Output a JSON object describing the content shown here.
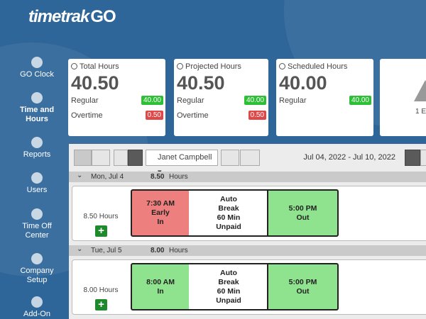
{
  "header": {
    "logo_main": "timetrak",
    "logo_go": "GO"
  },
  "sidebar": {
    "items": [
      {
        "label": "GO Clock"
      },
      {
        "label": "Time and Hours",
        "active": true
      },
      {
        "label": "Reports"
      },
      {
        "label": "Users"
      },
      {
        "label": "Time Off Center"
      },
      {
        "label": "Company Setup"
      },
      {
        "label": "Add-On"
      }
    ]
  },
  "summary_cards": [
    {
      "title": "Total Hours",
      "value": "40.50",
      "rows": [
        {
          "label": "Regular",
          "value": "40.00",
          "color": "green"
        },
        {
          "label": "Overtime",
          "value": "0.50",
          "color": "red"
        }
      ]
    },
    {
      "title": "Projected Hours",
      "value": "40.50",
      "rows": [
        {
          "label": "Regular",
          "value": "40.00",
          "color": "green"
        },
        {
          "label": "Overtime",
          "value": "0.50",
          "color": "red"
        }
      ]
    },
    {
      "title": "Scheduled Hours",
      "value": "40.00",
      "rows": [
        {
          "label": "Regular",
          "value": "40.00",
          "color": "green"
        }
      ]
    }
  ],
  "partial_card": {
    "text": "1 E"
  },
  "toolbar": {
    "employee": "Janet Campbell",
    "date_range": "Jul 04, 2022 - Jul 10, 2022"
  },
  "days": [
    {
      "date": "Mon, Jul 4",
      "total": "8.50",
      "unit": "Hours",
      "summary": "8.50 Hours",
      "punches": [
        {
          "lines": [
            "7:30 AM",
            "Early",
            "In"
          ],
          "color": "red"
        },
        {
          "lines": [
            "Auto",
            "Break",
            "60 Min",
            "Unpaid"
          ],
          "color": "white"
        },
        {
          "lines": [
            "5:00 PM",
            "Out"
          ],
          "color": "green"
        }
      ]
    },
    {
      "date": "Tue, Jul 5",
      "total": "8.00",
      "unit": "Hours",
      "summary": "8.00 Hours",
      "punches": [
        {
          "lines": [
            "8:00 AM",
            "In"
          ],
          "color": "green"
        },
        {
          "lines": [
            "Auto",
            "Break",
            "60 Min",
            "Unpaid"
          ],
          "color": "white"
        },
        {
          "lines": [
            "5:00 PM",
            "Out"
          ],
          "color": "green"
        }
      ]
    }
  ]
}
